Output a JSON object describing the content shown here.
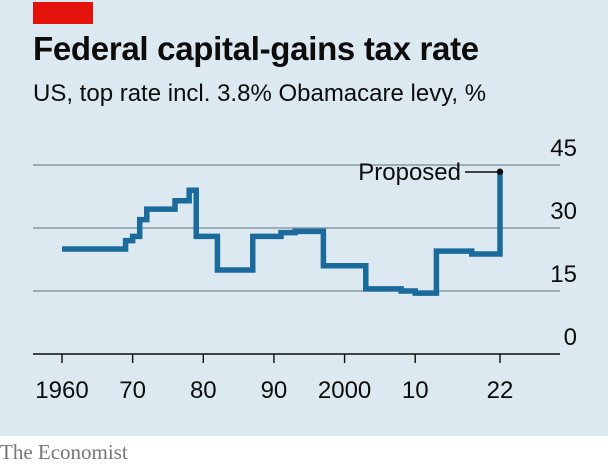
{
  "header": {
    "title": "Federal capital-gains tax rate",
    "subtitle": "US, top rate incl. 3.8% Obamacare levy, %"
  },
  "source": "The Economist",
  "colors": {
    "line": "#1a6a9c",
    "tag": "#e3120b",
    "panel": "#dce9f1",
    "grid": "#7a8a94",
    "axis": "#0c0c0c"
  },
  "chart_data": {
    "type": "line",
    "step": true,
    "title": "Federal capital-gains tax rate",
    "subtitle": "US, top rate incl. 3.8% Obamacare levy, %",
    "xlabel": "",
    "ylabel": "",
    "xlim": [
      1960,
      2022
    ],
    "ylim": [
      0,
      45
    ],
    "x_ticks": [
      1960,
      1970,
      1980,
      1990,
      2000,
      2010,
      2022
    ],
    "x_tick_labels": [
      "1960",
      "70",
      "80",
      "90",
      "2000",
      "10",
      "22"
    ],
    "y_ticks": [
      0,
      15,
      30,
      45
    ],
    "y_tick_labels": [
      "0",
      "15",
      "30",
      "45"
    ],
    "grid": true,
    "series": [
      {
        "name": "",
        "x": [
          1960,
          1968,
          1969,
          1970,
          1971,
          1972,
          1976,
          1978,
          1979,
          1982,
          1987,
          1991,
          1993,
          1997,
          2003,
          2008,
          2010,
          2013,
          2018,
          2022
        ],
        "y": [
          25,
          25,
          27,
          28,
          32,
          34.5,
          36.5,
          39,
          28,
          20,
          28,
          28.9,
          29.2,
          21,
          15.5,
          15,
          14.5,
          24.5,
          23.8,
          43.4
        ]
      }
    ],
    "annotations": [
      {
        "text": "Proposed",
        "x": 2022,
        "y": 43.4
      }
    ]
  }
}
